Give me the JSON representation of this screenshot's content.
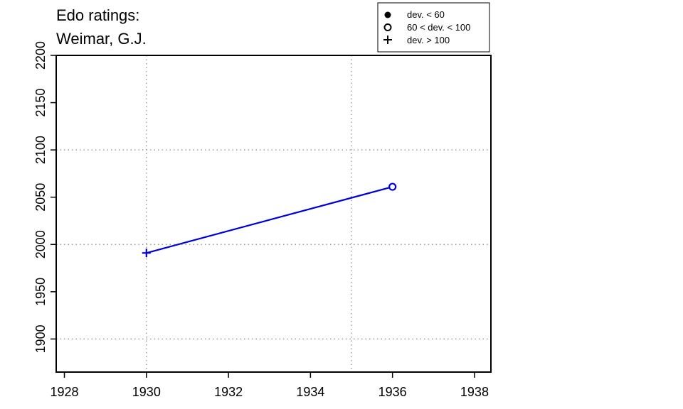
{
  "chart_data": {
    "type": "line",
    "title_lines": [
      "Edo ratings:",
      "Weimar, G.J."
    ],
    "xlabel": "",
    "ylabel": "",
    "xlim": [
      1927.8,
      1938.4
    ],
    "ylim": [
      1865,
      2200
    ],
    "x_ticks": [
      1928,
      1930,
      1932,
      1934,
      1936,
      1938
    ],
    "y_ticks": [
      1900,
      1950,
      2000,
      2050,
      2100,
      2150,
      2200
    ],
    "x_grid": [
      1930,
      1935
    ],
    "y_grid": [
      1900,
      2000,
      2100
    ],
    "grid": "dotted",
    "legend_position": "top-right",
    "legend": [
      {
        "marker": "filled-circle",
        "label": "dev. < 60"
      },
      {
        "marker": "open-circle",
        "label": "60 < dev. < 100"
      },
      {
        "marker": "plus",
        "label": "dev. > 100"
      }
    ],
    "series": [
      {
        "color": "#0000dd",
        "points": [
          {
            "x": 1930,
            "y": 1991,
            "marker": "plus"
          },
          {
            "x": 1936,
            "y": 2061,
            "marker": "open-circle"
          }
        ]
      }
    ]
  }
}
